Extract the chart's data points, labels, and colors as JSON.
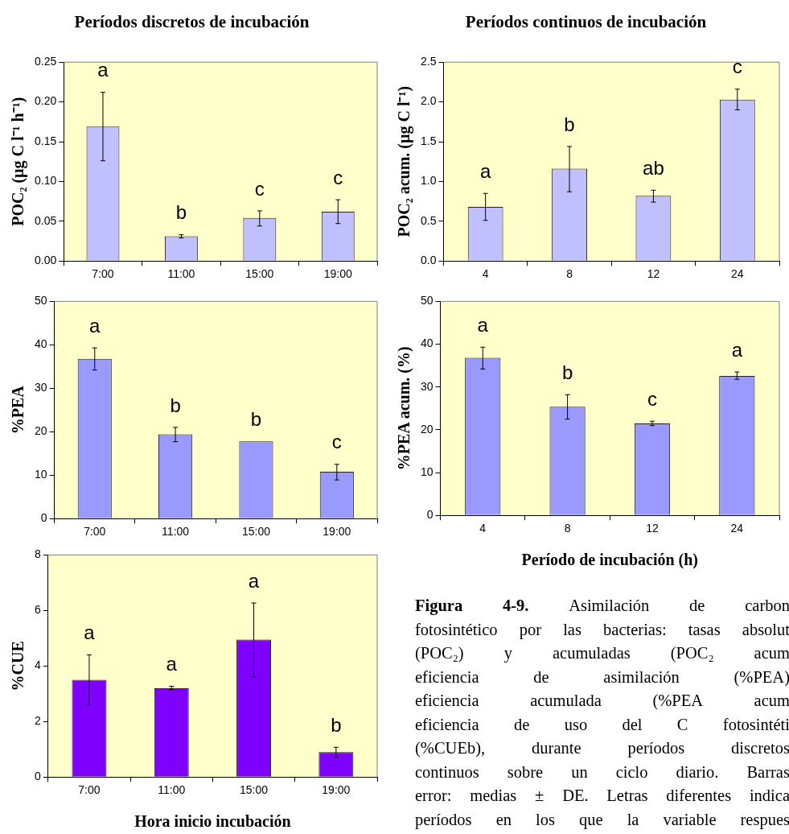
{
  "chart_data": [
    {
      "type": "bar",
      "title": "Períodos discretos de incubación",
      "ylabel": "POC₂ (µg C l⁻¹ h⁻¹)",
      "categories": [
        "7:00",
        "11:00",
        "15:00",
        "19:00"
      ],
      "values": [
        0.169,
        0.031,
        0.054,
        0.062
      ],
      "errors": [
        [
          0.126,
          0.212
        ],
        [
          0.029,
          0.033
        ],
        [
          0.044,
          0.063
        ],
        [
          0.047,
          0.077
        ]
      ],
      "color": "#c0c0ff",
      "ylim": [
        0,
        0.25
      ],
      "yticks": [
        {
          "value": 0,
          "label": "0.00"
        },
        {
          "value": 0.05,
          "label": "0.05"
        },
        {
          "value": 0.1,
          "label": "0.10"
        },
        {
          "value": 0.15,
          "label": "0.15"
        },
        {
          "value": 0.2,
          "label": "0.20"
        },
        {
          "value": 0.25,
          "label": "0.25"
        }
      ],
      "value_labels": [
        "a",
        "b",
        "c",
        "c"
      ]
    },
    {
      "type": "bar",
      "ylabel": "%PEA",
      "categories": [
        "7:00",
        "11:00",
        "15:00",
        "19:00"
      ],
      "values": [
        36.8,
        19.4,
        17.8,
        10.8
      ],
      "errors": [
        [
          34.2,
          39.3
        ],
        [
          17.7,
          21.0
        ],
        null,
        [
          8.9,
          12.5
        ]
      ],
      "color": "#9999ff",
      "ylim": [
        0,
        50
      ],
      "yticks": [
        0,
        10,
        20,
        30,
        40,
        50
      ],
      "value_labels": [
        "a",
        "b",
        "b",
        "c"
      ]
    },
    {
      "type": "bar",
      "ylabel": "%CUE",
      "xlabel": "Hora inicio incubación",
      "categories": [
        "7:00",
        "11:00",
        "15:00",
        "19:00"
      ],
      "values": [
        3.5,
        3.2,
        4.95,
        0.9
      ],
      "errors": [
        [
          2.6,
          4.4
        ],
        [
          3.15,
          3.27
        ],
        [
          3.6,
          6.27
        ],
        [
          0.72,
          1.07
        ]
      ],
      "color": "#8000ff",
      "ylim": [
        0,
        8
      ],
      "yticks": [
        0,
        2,
        4,
        6,
        8
      ],
      "value_labels": [
        "a",
        "a",
        "a",
        "b"
      ]
    },
    {
      "type": "bar",
      "title": "Períodos continuos de incubación",
      "ylabel": "POC₂ acum. (µg C l⁻¹)",
      "categories": [
        "4",
        "8",
        "12",
        "24"
      ],
      "values": [
        0.68,
        1.16,
        0.82,
        2.03
      ],
      "errors": [
        [
          0.51,
          0.85
        ],
        [
          0.87,
          1.44
        ],
        [
          0.74,
          0.89
        ],
        [
          1.9,
          2.16
        ]
      ],
      "color": "#c0c0ff",
      "ylim": [
        0,
        2.5
      ],
      "yticks": [
        {
          "value": 0,
          "label": "0.0"
        },
        {
          "value": 0.5,
          "label": "0.5"
        },
        {
          "value": 1,
          "label": "1.0"
        },
        {
          "value": 1.5,
          "label": "1.5"
        },
        {
          "value": 2,
          "label": "2.0"
        },
        {
          "value": 2.5,
          "label": "2.5"
        }
      ],
      "value_labels": [
        "a",
        "b",
        "ab",
        "c"
      ]
    },
    {
      "type": "bar",
      "ylabel": "%PEA acum. (%)",
      "xlabel": "Período de incubación (h)",
      "categories": [
        "4",
        "8",
        "12",
        "24"
      ],
      "values": [
        36.8,
        25.4,
        21.5,
        32.6
      ],
      "errors": [
        [
          34.2,
          39.3
        ],
        [
          22.5,
          28.2
        ],
        [
          21.0,
          22.0
        ],
        [
          31.8,
          33.5
        ]
      ],
      "color": "#9999ff",
      "ylim": [
        0,
        50
      ],
      "yticks": [
        0,
        10,
        20,
        30,
        40,
        50
      ],
      "value_labels": [
        "a",
        "b",
        "c",
        "a"
      ]
    },
    {
      "type": "other",
      "annotations": [
        "Figura 4-9. Asimilación de carbon",
        "fotosintético por las bacterias: tasas absolut",
        "(POC₂) y acumuladas (POC₂ acum",
        "eficiencia de asimilación (%PEA)",
        "eficiencia acumulada (%PEA acum",
        "eficiencia de uso del C fotosintéti",
        "(%CUEb), durante períodos discretos",
        "continuos sobre un ciclo diario. Barras",
        "error: medias ± DE. Letras diferentes indica",
        "períodos en los que la variable respues"
      ]
    }
  ]
}
